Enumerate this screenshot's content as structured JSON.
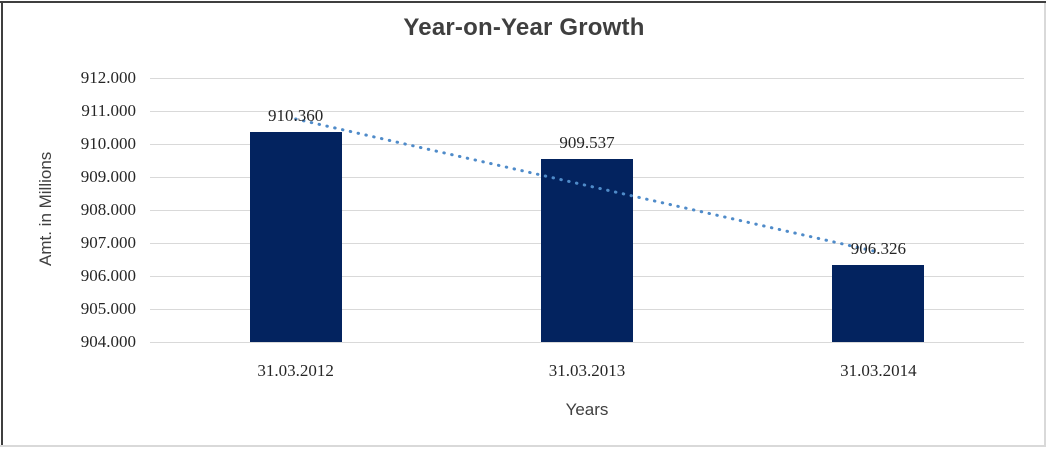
{
  "chart_data": {
    "type": "bar",
    "title": "Year-on-Year Growth",
    "xlabel": "Years",
    "ylabel": "Amt. in Millions",
    "categories": [
      "31.03.2012",
      "31.03.2013",
      "31.03.2014"
    ],
    "values": [
      910.36,
      909.537,
      906.326
    ],
    "data_labels": [
      "910.360",
      "909.537",
      "906.326"
    ],
    "ylim": [
      904,
      912
    ],
    "ytick_labels": [
      "912.000",
      "911.000",
      "910.000",
      "909.000",
      "908.000",
      "907.000",
      "906.000",
      "905.000",
      "904.000"
    ],
    "grid": true,
    "legend": false,
    "trendline": {
      "type": "linear",
      "style": "dotted"
    },
    "colors": {
      "bar": "#03235f",
      "trendline": "#4f8bc9",
      "gridline": "#d9d9d9",
      "title_text": "#3f3f3f",
      "tick_text": "#262626",
      "axis_title_text": "#404040"
    }
  }
}
